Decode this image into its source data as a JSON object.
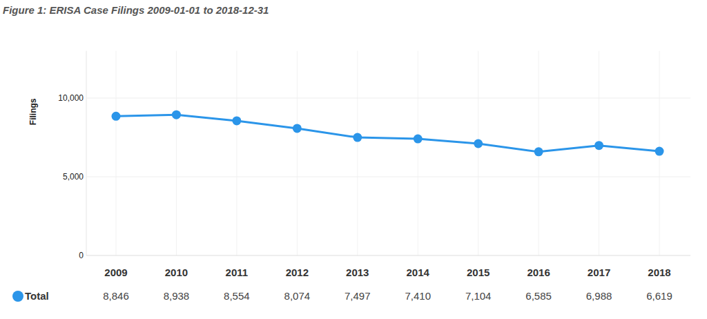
{
  "chart_data": {
    "type": "line",
    "title": "Figure 1: ERISA Case Filings 2009-01-01 to 2018-12-31",
    "y_label": "Filings",
    "categories": [
      "2009",
      "2010",
      "2011",
      "2012",
      "2013",
      "2014",
      "2015",
      "2016",
      "2017",
      "2018"
    ],
    "series": [
      {
        "name": "Total",
        "color": "#2b95e9",
        "marker": "circle",
        "values": [
          8846,
          8938,
          8554,
          8074,
          7497,
          7410,
          7104,
          6585,
          6988,
          6619
        ],
        "value_labels": [
          "8,846",
          "8,938",
          "8,554",
          "8,074",
          "7,497",
          "7,410",
          "7,104",
          "6,585",
          "6,988",
          "6,619"
        ]
      }
    ],
    "ylim": [
      0,
      13000
    ],
    "yticks": [
      0,
      {
        "value": 5000,
        "label": "5,000"
      },
      {
        "value": 10000,
        "label": "10,000"
      }
    ],
    "grid": true,
    "data_labels": true,
    "legend": "bottom"
  }
}
